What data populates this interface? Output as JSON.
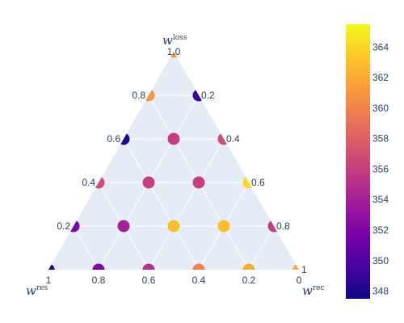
{
  "chart_data": {
    "type": "scatter",
    "subtype": "ternary",
    "axes": {
      "a": {
        "title": "w",
        "sup": "loss",
        "ticks": [
          "0.2",
          "0.4",
          "0.6",
          "0.8",
          "1.0"
        ]
      },
      "b": {
        "title": "w",
        "sup": "res",
        "ticks": [
          "0",
          "0.2",
          "0.4",
          "0.6",
          "0.8",
          "1"
        ]
      },
      "c": {
        "title": "w",
        "sup": "rec",
        "ticks": [
          "0.2",
          "0.4",
          "0.6",
          "0.8",
          "1"
        ]
      }
    },
    "points": [
      {
        "a": 1.0,
        "b": 0.0,
        "c": 0.0,
        "value": 361
      },
      {
        "a": 0.8,
        "b": 0.2,
        "c": 0.0,
        "value": 361
      },
      {
        "a": 0.8,
        "b": 0.0,
        "c": 0.2,
        "value": 349
      },
      {
        "a": 0.6,
        "b": 0.4,
        "c": 0.0,
        "value": 348
      },
      {
        "a": 0.6,
        "b": 0.2,
        "c": 0.2,
        "value": 356
      },
      {
        "a": 0.6,
        "b": 0.0,
        "c": 0.4,
        "value": 357
      },
      {
        "a": 0.4,
        "b": 0.6,
        "c": 0.0,
        "value": 357
      },
      {
        "a": 0.4,
        "b": 0.4,
        "c": 0.2,
        "value": 356
      },
      {
        "a": 0.4,
        "b": 0.2,
        "c": 0.4,
        "value": 356
      },
      {
        "a": 0.4,
        "b": 0.0,
        "c": 0.6,
        "value": 364
      },
      {
        "a": 0.2,
        "b": 0.8,
        "c": 0.0,
        "value": 352
      },
      {
        "a": 0.2,
        "b": 0.6,
        "c": 0.2,
        "value": 354
      },
      {
        "a": 0.2,
        "b": 0.4,
        "c": 0.4,
        "value": 363
      },
      {
        "a": 0.2,
        "b": 0.2,
        "c": 0.6,
        "value": 363
      },
      {
        "a": 0.2,
        "b": 0.0,
        "c": 0.8,
        "value": 356
      },
      {
        "a": 0.0,
        "b": 1.0,
        "c": 0.0,
        "value": 348
      },
      {
        "a": 0.0,
        "b": 0.8,
        "c": 0.2,
        "value": 352
      },
      {
        "a": 0.0,
        "b": 0.6,
        "c": 0.4,
        "value": 355
      },
      {
        "a": 0.0,
        "b": 0.4,
        "c": 0.6,
        "value": 360
      },
      {
        "a": 0.0,
        "b": 0.2,
        "c": 0.8,
        "value": 362
      },
      {
        "a": 0.0,
        "b": 0.0,
        "c": 1.0,
        "value": 362
      }
    ],
    "colorbar": {
      "range": [
        347.5,
        365.5
      ],
      "ticks": [
        348,
        350,
        352,
        354,
        356,
        358,
        360,
        362,
        364
      ],
      "colorscale": "Plasma"
    },
    "colors": {
      "plot_bg": "#e5ecf6",
      "grid": "#ffffff",
      "text": "#2a3f5f"
    }
  }
}
